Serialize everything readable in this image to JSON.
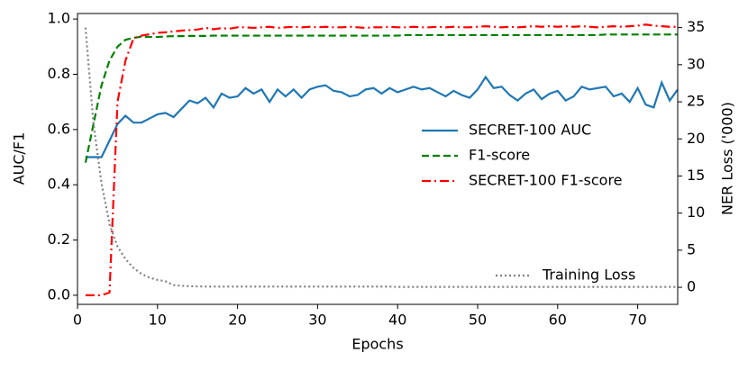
{
  "chart_data": {
    "type": "line",
    "xlabel": "Epochs",
    "ylabel": "AUC/F1",
    "y2label": "NER Loss ('000)",
    "x": [
      1,
      2,
      3,
      4,
      5,
      6,
      7,
      8,
      9,
      10,
      11,
      12,
      13,
      14,
      15,
      16,
      17,
      18,
      19,
      20,
      21,
      22,
      23,
      24,
      25,
      26,
      27,
      28,
      29,
      30,
      31,
      32,
      33,
      34,
      35,
      36,
      37,
      38,
      39,
      40,
      41,
      42,
      43,
      44,
      45,
      46,
      47,
      48,
      49,
      50,
      51,
      52,
      53,
      54,
      55,
      56,
      57,
      58,
      59,
      60,
      61,
      62,
      63,
      64,
      65,
      66,
      67,
      68,
      69,
      70,
      71,
      72,
      73,
      74,
      75
    ],
    "xlim": [
      0,
      75
    ],
    "xticks": [
      0,
      10,
      20,
      30,
      40,
      50,
      60,
      70
    ],
    "ylim": [
      -0.033,
      1.02
    ],
    "yticks": [
      {
        "value": 0,
        "label": "0.0"
      },
      {
        "value": 0.2,
        "label": "0.2"
      },
      {
        "value": 0.4,
        "label": "0.4"
      },
      {
        "value": 0.6,
        "label": "0.6"
      },
      {
        "value": 0.8,
        "label": "0.8"
      },
      {
        "value": 1,
        "label": "1.0"
      }
    ],
    "y2lim": [
      -2.3,
      36.9
    ],
    "y2ticks": [
      0,
      5,
      10,
      15,
      20,
      25,
      30,
      35
    ],
    "legend": "center right",
    "legend2": "lower right",
    "series": [
      {
        "name": "SECRET-100 AUC",
        "color": "#1f77b4",
        "linestyle": "solid",
        "values": [
          0.5,
          0.5,
          0.5,
          0.56,
          0.62,
          0.65,
          0.625,
          0.625,
          0.64,
          0.655,
          0.66,
          0.645,
          0.675,
          0.705,
          0.695,
          0.715,
          0.68,
          0.73,
          0.715,
          0.72,
          0.75,
          0.73,
          0.745,
          0.7,
          0.745,
          0.72,
          0.745,
          0.715,
          0.745,
          0.755,
          0.76,
          0.74,
          0.735,
          0.72,
          0.725,
          0.745,
          0.75,
          0.73,
          0.75,
          0.735,
          0.745,
          0.755,
          0.745,
          0.75,
          0.735,
          0.72,
          0.74,
          0.725,
          0.715,
          0.745,
          0.79,
          0.75,
          0.755,
          0.725,
          0.705,
          0.73,
          0.745,
          0.71,
          0.73,
          0.74,
          0.705,
          0.72,
          0.755,
          0.745,
          0.75,
          0.755,
          0.72,
          0.73,
          0.7,
          0.75,
          0.69,
          0.68,
          0.77,
          0.705,
          0.745
        ]
      },
      {
        "name": "F1-score",
        "color": "#008000",
        "linestyle": "dashed",
        "values": [
          0.48,
          0.62,
          0.76,
          0.85,
          0.9,
          0.925,
          0.932,
          0.936,
          0.935,
          0.935,
          0.937,
          0.938,
          0.938,
          0.939,
          0.939,
          0.939,
          0.94,
          0.94,
          0.94,
          0.94,
          0.94,
          0.94,
          0.94,
          0.94,
          0.94,
          0.94,
          0.94,
          0.94,
          0.94,
          0.94,
          0.94,
          0.94,
          0.94,
          0.94,
          0.94,
          0.94,
          0.94,
          0.94,
          0.94,
          0.94,
          0.942,
          0.942,
          0.942,
          0.942,
          0.942,
          0.942,
          0.942,
          0.942,
          0.942,
          0.942,
          0.942,
          0.942,
          0.942,
          0.942,
          0.942,
          0.942,
          0.942,
          0.942,
          0.942,
          0.942,
          0.942,
          0.942,
          0.942,
          0.942,
          0.942,
          0.944,
          0.944,
          0.944,
          0.944,
          0.944,
          0.944,
          0.944,
          0.944,
          0.944,
          0.944
        ]
      },
      {
        "name": "SECRET-100 F1-score",
        "color": "#ff0000",
        "linestyle": "dashdot",
        "values": [
          0,
          0,
          0,
          0.01,
          0.7,
          0.85,
          0.93,
          0.94,
          0.945,
          0.95,
          0.952,
          0.955,
          0.958,
          0.96,
          0.962,
          0.968,
          0.963,
          0.967,
          0.965,
          0.97,
          0.97,
          0.968,
          0.97,
          0.972,
          0.968,
          0.97,
          0.972,
          0.97,
          0.972,
          0.97,
          0.972,
          0.97,
          0.97,
          0.972,
          0.97,
          0.968,
          0.97,
          0.97,
          0.972,
          0.97,
          0.97,
          0.972,
          0.97,
          0.97,
          0.972,
          0.97,
          0.972,
          0.97,
          0.97,
          0.972,
          0.974,
          0.972,
          0.97,
          0.972,
          0.97,
          0.972,
          0.974,
          0.972,
          0.974,
          0.972,
          0.974,
          0.972,
          0.974,
          0.972,
          0.97,
          0.972,
          0.974,
          0.972,
          0.974,
          0.976,
          0.98,
          0.976,
          0.974,
          0.972,
          0.972
        ]
      },
      {
        "name": "Training Loss",
        "color": "#808080",
        "linestyle": "dotted",
        "axis": "y2",
        "values": [
          35,
          22,
          14,
          8.5,
          5.5,
          3.8,
          2.6,
          1.8,
          1.3,
          1.0,
          0.8,
          0.3,
          0.2,
          0.15,
          0.12,
          0.1,
          0.1,
          0.1,
          0.1,
          0.1,
          0.1,
          0.1,
          0.1,
          0.1,
          0.1,
          0.1,
          0.1,
          0.1,
          0.1,
          0.1,
          0.1,
          0.1,
          0.1,
          0.1,
          0.1,
          0.1,
          0.1,
          0.1,
          0.1,
          0.05,
          0.05,
          0.05,
          0.05,
          0.05,
          0.05,
          0.05,
          0.05,
          0.05,
          0.05,
          0.05,
          0.05,
          0.05,
          0.05,
          0.05,
          0.05,
          0.05,
          0.05,
          0.05,
          0.05,
          0.05,
          0.05,
          0.05,
          0.05,
          0.05,
          0.05,
          0.05,
          0.05,
          0.05,
          0.05,
          0.05,
          0.05,
          0.05,
          0.05,
          0.05,
          0.05
        ]
      }
    ]
  }
}
